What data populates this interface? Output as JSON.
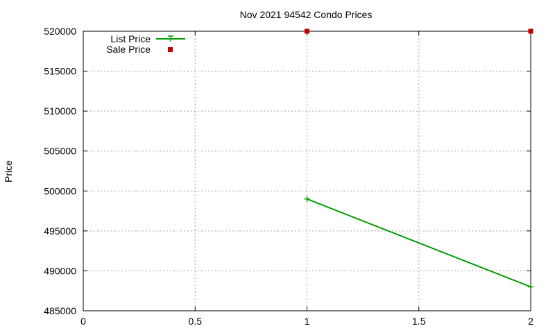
{
  "chart_data": {
    "type": "line",
    "title": "Nov 2021 94542 Condo Prices",
    "xlabel": "",
    "ylabel": "Price",
    "xlim": [
      0,
      2
    ],
    "ylim": [
      485000,
      520000
    ],
    "x_ticks": [
      "0",
      "0.5",
      "1",
      "1.5",
      "2"
    ],
    "y_ticks": [
      "485000",
      "490000",
      "495000",
      "500000",
      "505000",
      "510000",
      "515000",
      "520000"
    ],
    "grid": true,
    "legend_position": "top-left",
    "series": [
      {
        "name": "List Price",
        "style": "line-with-plus-markers",
        "color": "#009e00",
        "x": [
          1,
          2
        ],
        "y": [
          499000,
          488000
        ]
      },
      {
        "name": "Sale Price",
        "style": "square-markers",
        "color": "#c00000",
        "x": [
          1,
          2
        ],
        "y": [
          520000,
          520000
        ]
      }
    ]
  }
}
